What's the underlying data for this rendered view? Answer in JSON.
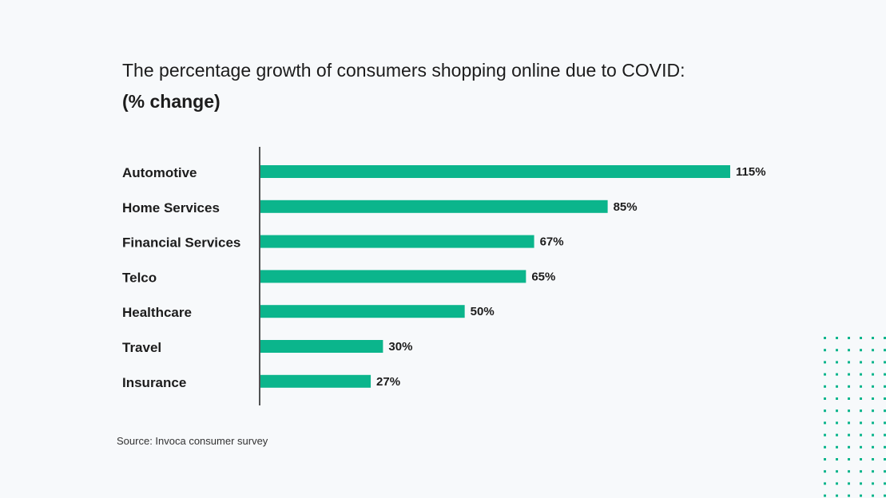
{
  "chart_data": {
    "type": "bar",
    "orientation": "horizontal",
    "title": "The percentage growth of consumers shopping online due to COVID:",
    "subtitle": "(% change)",
    "categories": [
      "Automotive",
      "Home Services",
      "Financial Services",
      "Telco",
      "Healthcare",
      "Travel",
      "Insurance"
    ],
    "values": [
      115,
      85,
      67,
      65,
      50,
      30,
      27
    ],
    "value_labels": [
      "115%",
      "85%",
      "67%",
      "65%",
      "50%",
      "30%",
      "27%"
    ],
    "bar_color": "#0bb58c",
    "xlim": [
      0,
      115
    ],
    "grid": false,
    "source": "Source: Invoca consumer survey"
  },
  "decoration": {
    "dot_color": "#0bb58c"
  }
}
